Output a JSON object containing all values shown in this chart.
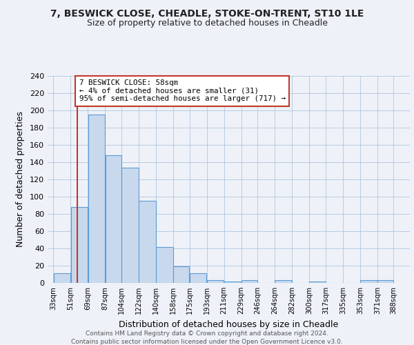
{
  "title1": "7, BESWICK CLOSE, CHEADLE, STOKE-ON-TRENT, ST10 1LE",
  "title2": "Size of property relative to detached houses in Cheadle",
  "xlabel": "Distribution of detached houses by size in Cheadle",
  "ylabel": "Number of detached properties",
  "bar_left_edges": [
    33,
    51,
    69,
    87,
    104,
    122,
    140,
    158,
    175,
    193,
    211,
    229,
    246,
    264,
    282,
    300,
    317,
    335,
    353,
    371
  ],
  "bar_widths": [
    18,
    18,
    18,
    17,
    18,
    18,
    18,
    17,
    18,
    18,
    18,
    17,
    18,
    18,
    18,
    17,
    18,
    18,
    18,
    17
  ],
  "bar_heights": [
    11,
    88,
    195,
    148,
    134,
    95,
    42,
    19,
    11,
    3,
    2,
    3,
    0,
    3,
    0,
    2,
    0,
    0,
    3,
    3
  ],
  "tick_labels": [
    "33sqm",
    "51sqm",
    "69sqm",
    "87sqm",
    "104sqm",
    "122sqm",
    "140sqm",
    "158sqm",
    "175sqm",
    "193sqm",
    "211sqm",
    "229sqm",
    "246sqm",
    "264sqm",
    "282sqm",
    "300sqm",
    "317sqm",
    "335sqm",
    "353sqm",
    "371sqm",
    "388sqm"
  ],
  "tick_positions": [
    33,
    51,
    69,
    87,
    104,
    122,
    140,
    158,
    175,
    193,
    211,
    229,
    246,
    264,
    282,
    300,
    317,
    335,
    353,
    371,
    388
  ],
  "bar_color": "#c9d9ed",
  "bar_edge_color": "#5b9bd5",
  "property_line_x": 58,
  "property_line_color": "#c0392b",
  "annotation_text": "7 BESWICK CLOSE: 58sqm\n← 4% of detached houses are smaller (31)\n95% of semi-detached houses are larger (717) →",
  "annotation_box_edge": "#c0392b",
  "annotation_box_face": "#ffffff",
  "ylim": [
    0,
    240
  ],
  "yticks": [
    0,
    20,
    40,
    60,
    80,
    100,
    120,
    140,
    160,
    180,
    200,
    220,
    240
  ],
  "grid_color": "#b0c4de",
  "background_color": "#eef2f8",
  "footnote1": "Contains HM Land Registry data © Crown copyright and database right 2024.",
  "footnote2": "Contains public sector information licensed under the Open Government Licence v3.0."
}
